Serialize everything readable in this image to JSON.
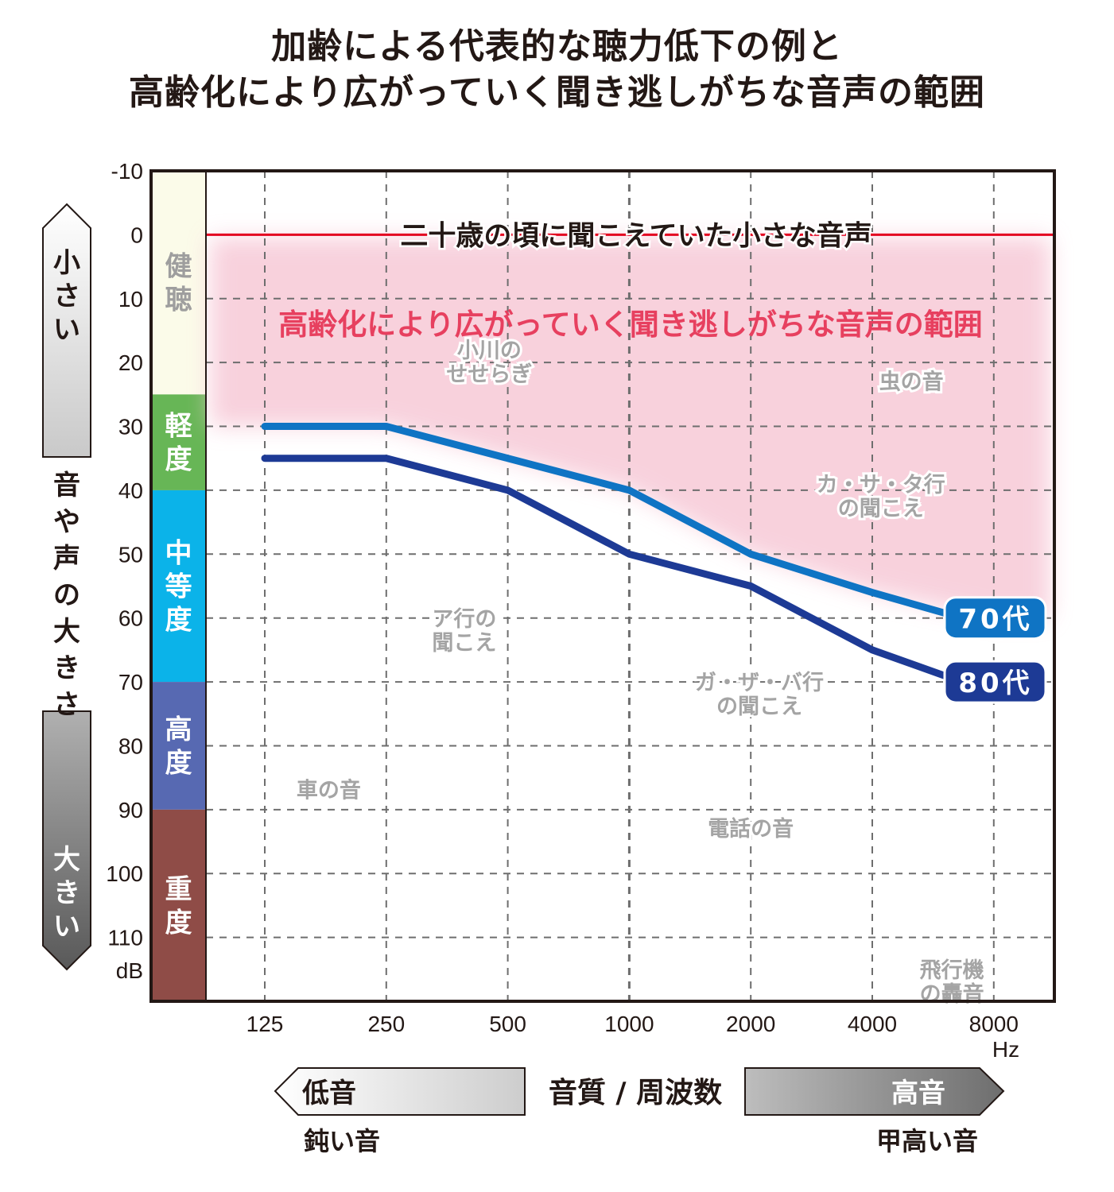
{
  "title": {
    "line1": "加齢による代表的な聴力低下の例と",
    "line2": "高齢化により広がっていく聞き逃しがちな音声の範囲"
  },
  "y_axis": {
    "unit": "dB",
    "small_label": "小さい",
    "middle_label": "音や声の大きさ",
    "large_label": "大きい"
  },
  "x_axis": {
    "unit": "Hz",
    "center_label": "音質 / 周波数",
    "low_label": "低音",
    "low_sublabel": "鈍い音",
    "high_label": "高音",
    "high_sublabel": "甲高い音"
  },
  "bands": [
    {
      "label": "健聴",
      "from": -10,
      "to": 25,
      "color": "#fbfbe9",
      "text_color": "#9e9e9e"
    },
    {
      "label": "軽度",
      "from": 25,
      "to": 40,
      "color": "#67b656",
      "text_color": "#ffffff"
    },
    {
      "label": "中等度",
      "from": 40,
      "to": 70,
      "color": "#0bb3e9",
      "text_color": "#ffffff"
    },
    {
      "label": "高度",
      "from": 70,
      "to": 90,
      "color": "#5769b2",
      "text_color": "#ffffff"
    },
    {
      "label": "重度",
      "from": 90,
      "to": 120,
      "color": "#8f4c47",
      "text_color": "#ffffff"
    }
  ],
  "reference_line": {
    "value": 0,
    "label": "二十歳の頃に聞こえていた小さな音声",
    "color": "#e3001f"
  },
  "shaded_region": {
    "label": "高齢化により広がっていく聞き逃しがちな音声の範囲",
    "label_color": "#e7405f",
    "fill": "#f7c9d7"
  },
  "annotations": [
    {
      "lines": [
        "小川の",
        "せせらぎ"
      ],
      "x": 450,
      "y": 20
    },
    {
      "lines": [
        "虫の音"
      ],
      "x": 5000,
      "y": 23
    },
    {
      "lines": [
        "カ・サ・タ行",
        "の聞こえ"
      ],
      "x": 4200,
      "y": 41
    },
    {
      "lines": [
        "ア行の",
        "聞こえ"
      ],
      "x": 390,
      "y": 62
    },
    {
      "lines": [
        "ガ・ザ・バ行",
        "の聞こえ"
      ],
      "x": 2100,
      "y": 72
    },
    {
      "lines": [
        "車の音"
      ],
      "x": 180,
      "y": 87
    },
    {
      "lines": [
        "電話の音"
      ],
      "x": 2000,
      "y": 93
    },
    {
      "lines": [
        "飛行機",
        "の轟音"
      ],
      "x": 6300,
      "y": 117
    }
  ],
  "chart_data": {
    "type": "line",
    "x": [
      125,
      250,
      500,
      1000,
      2000,
      4000,
      8000
    ],
    "x_tick_labels": [
      "125",
      "250",
      "500",
      "1000",
      "2000",
      "4000",
      "8000"
    ],
    "xscale": "log2",
    "y_tick_labels": [
      "-10",
      "0",
      "10",
      "20",
      "30",
      "40",
      "50",
      "60",
      "70",
      "80",
      "90",
      "100",
      "110"
    ],
    "ylim": [
      -10,
      120
    ],
    "y_inverted": true,
    "grid": true,
    "series": [
      {
        "name": "70代",
        "values": [
          30,
          30,
          35,
          40,
          50,
          56,
          60
        ],
        "color": "#0f74c4"
      },
      {
        "name": "80代",
        "values": [
          35,
          35,
          40,
          50,
          55,
          65,
          70
        ],
        "color": "#1d3a95"
      }
    ]
  }
}
